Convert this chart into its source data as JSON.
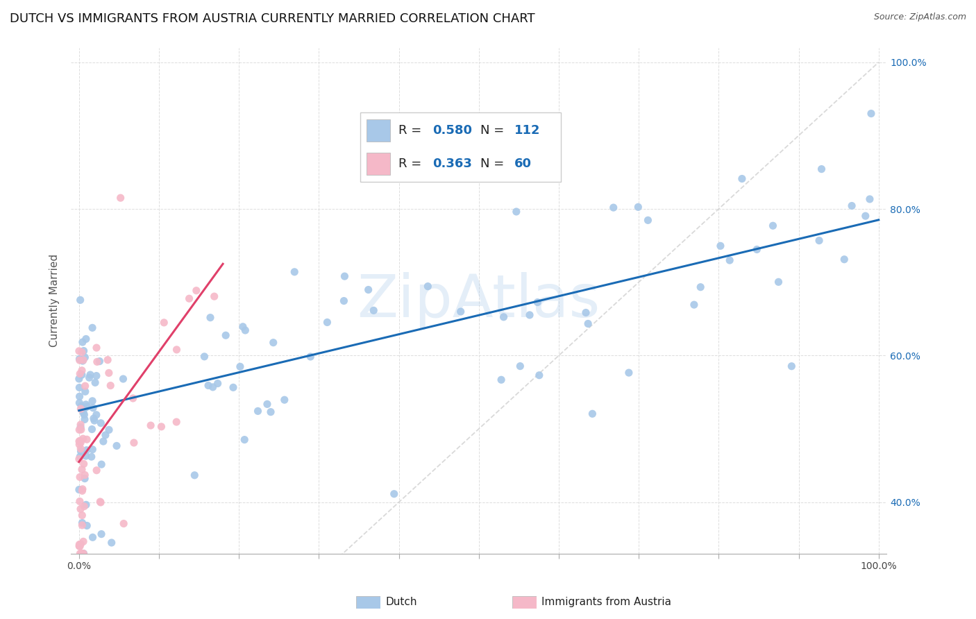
{
  "title": "DUTCH VS IMMIGRANTS FROM AUSTRIA CURRENTLY MARRIED CORRELATION CHART",
  "source": "Source: ZipAtlas.com",
  "ylabel": "Currently Married",
  "dutch_R": 0.58,
  "dutch_N": 112,
  "austria_R": 0.363,
  "austria_N": 60,
  "dutch_color": "#a8c8e8",
  "austria_color": "#f5b8c8",
  "dutch_line_color": "#1a6bb5",
  "austria_line_color": "#e0406a",
  "diagonal_color": "#d0d0d0",
  "watermark": "ZipAtlas",
  "background_color": "#ffffff",
  "grid_color": "#dddddd",
  "legend_color": "#1a6bb5",
  "title_fontsize": 13,
  "source_fontsize": 9,
  "axis_label_fontsize": 11,
  "xlim": [
    0.0,
    1.0
  ],
  "ylim": [
    0.33,
    1.02
  ],
  "x_ticks": [
    0.0,
    0.1,
    0.2,
    0.3,
    0.4,
    0.5,
    0.6,
    0.7,
    0.8,
    0.9,
    1.0
  ],
  "y_ticks": [
    0.4,
    0.6,
    0.8,
    1.0
  ],
  "y_tick_labels": [
    "40.0%",
    "60.0%",
    "80.0%",
    "100.0%"
  ]
}
